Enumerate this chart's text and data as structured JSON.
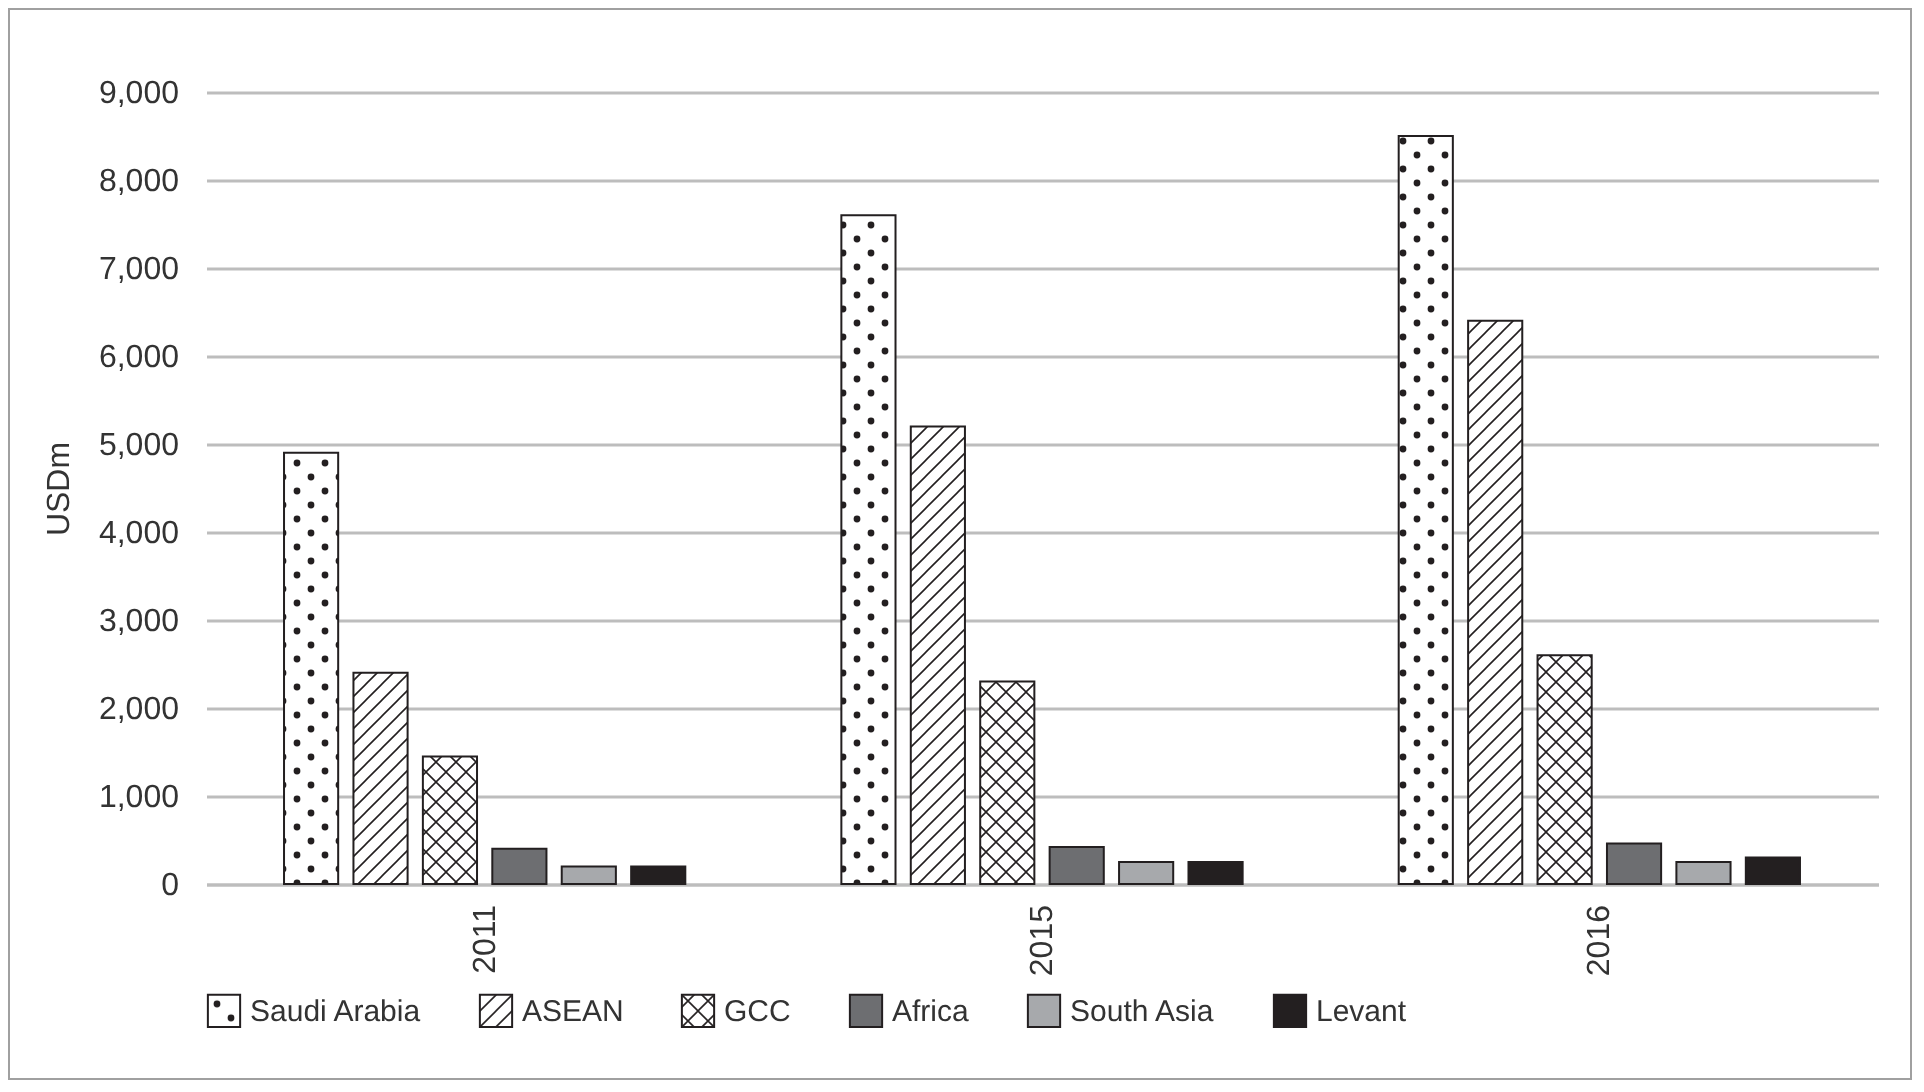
{
  "chart_data": {
    "type": "bar",
    "ylabel": "USDm",
    "categories": [
      "2011",
      "2015",
      "2016"
    ],
    "series": [
      {
        "name": "Saudi Arabia",
        "color": "#231f20",
        "values": [
          4900,
          7600,
          8500
        ]
      },
      {
        "name": "ASEAN",
        "color": "#231f20",
        "values": [
          2400,
          5200,
          6400
        ]
      },
      {
        "name": "GCC",
        "color": "#231f20",
        "values": [
          1450,
          2300,
          2600
        ]
      },
      {
        "name": "Africa",
        "color": "#6d6e71",
        "values": [
          400,
          420,
          460
        ]
      },
      {
        "name": "South Asia",
        "color": "#a7a9ac",
        "values": [
          200,
          250,
          250
        ]
      },
      {
        "name": "Levant",
        "color": "#231f20",
        "values": [
          200,
          250,
          300
        ]
      }
    ],
    "ylim": [
      0,
      9000
    ],
    "yticks": [
      {
        "value": 0,
        "label": "0"
      },
      {
        "value": 1000,
        "label": "1,000"
      },
      {
        "value": 2000,
        "label": "2,000"
      },
      {
        "value": 3000,
        "label": "3,000"
      },
      {
        "value": 4000,
        "label": "4,000"
      },
      {
        "value": 5000,
        "label": "5,000"
      },
      {
        "value": 6000,
        "label": "6,000"
      },
      {
        "value": 7000,
        "label": "7,000"
      },
      {
        "value": 8000,
        "label": "8,000"
      },
      {
        "value": 9000,
        "label": "9,000"
      }
    ],
    "grid": "y",
    "legend": "bottom"
  }
}
